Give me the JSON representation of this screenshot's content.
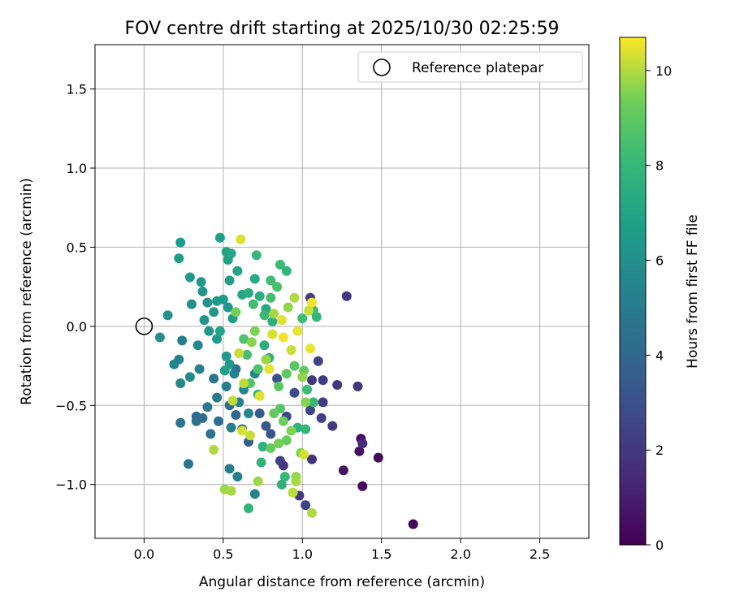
{
  "chart_data": {
    "type": "scatter",
    "title": "FOV centre drift starting at 2025/10/30 02:25:59",
    "xlabel": "Angular distance from reference (arcmin)",
    "ylabel": "Rotation from reference (arcmin)",
    "xlim": [
      -0.31,
      2.81
    ],
    "ylim": [
      -1.34,
      1.78
    ],
    "xticks": [
      0.0,
      0.5,
      1.0,
      1.5,
      2.0,
      2.5
    ],
    "xtick_labels": [
      "0.0",
      "0.5",
      "1.0",
      "1.5",
      "2.0",
      "2.5"
    ],
    "yticks": [
      -1.0,
      -0.5,
      0.0,
      0.5,
      1.0,
      1.5
    ],
    "ytick_labels": [
      "−1.0",
      "−0.5",
      "0.0",
      "0.5",
      "1.0",
      "1.5"
    ],
    "grid": true,
    "legend": {
      "position": "top-right",
      "entries": [
        "Reference platepar"
      ]
    },
    "reference_point": {
      "x": 0.0,
      "y": 0.0,
      "label": "Reference platepar"
    },
    "colorbar": {
      "label": "Hours from first FF file",
      "colormap": "viridis",
      "range": [
        0,
        10.7
      ],
      "ticks": [
        0,
        2,
        4,
        6,
        8,
        10
      ],
      "tick_labels": [
        "0",
        "2",
        "4",
        "6",
        "8",
        "10"
      ]
    },
    "series": [
      {
        "name": "FOV centre drift",
        "x_units": "arcmin",
        "y_units": "arcmin",
        "c_units": "hours",
        "points": [
          [
            1.7,
            -1.25,
            0.2
          ],
          [
            1.48,
            -0.83,
            0.3
          ],
          [
            1.38,
            -1.01,
            0.3
          ],
          [
            1.37,
            -0.71,
            0.4
          ],
          [
            1.36,
            -0.79,
            0.5
          ],
          [
            1.26,
            -0.91,
            0.6
          ],
          [
            1.38,
            -0.74,
            1.5
          ],
          [
            1.35,
            -0.38,
            1.9
          ],
          [
            1.28,
            0.19,
            1.9
          ],
          [
            1.22,
            -0.37,
            2.0
          ],
          [
            1.19,
            -0.63,
            2.1
          ],
          [
            1.13,
            -0.48,
            2.2
          ],
          [
            1.12,
            -0.58,
            2.3
          ],
          [
            1.13,
            -0.34,
            2.1
          ],
          [
            1.1,
            -0.22,
            2.4
          ],
          [
            1.06,
            -0.34,
            2.0
          ],
          [
            1.05,
            0.18,
            2.2
          ],
          [
            1.02,
            -1.13,
            2.4
          ],
          [
            0.98,
            -1.07,
            1.9
          ],
          [
            1.05,
            -0.53,
            2.5
          ],
          [
            1.06,
            -0.84,
            1.8
          ],
          [
            0.88,
            -0.88,
            2.0
          ],
          [
            0.86,
            -0.85,
            2.3
          ],
          [
            0.9,
            -0.57,
            2.6
          ],
          [
            0.95,
            -0.42,
            2.8
          ],
          [
            0.84,
            -0.33,
            3.0
          ],
          [
            0.8,
            -0.68,
            3.1
          ],
          [
            0.77,
            -0.63,
            3.3
          ],
          [
            0.73,
            -0.55,
            3.4
          ],
          [
            0.66,
            -0.73,
            3.6
          ],
          [
            0.62,
            -0.65,
            3.8
          ],
          [
            0.58,
            -0.56,
            4.0
          ],
          [
            0.54,
            -0.5,
            4.2
          ],
          [
            0.58,
            -0.27,
            4.4
          ],
          [
            0.47,
            -0.6,
            4.3
          ],
          [
            0.33,
            -0.57,
            4.1
          ],
          [
            0.33,
            -0.6,
            4.5
          ],
          [
            0.28,
            -0.87,
            4.6
          ],
          [
            0.23,
            -0.61,
            4.7
          ],
          [
            0.37,
            -0.58,
            4.2
          ],
          [
            0.42,
            -0.68,
            4.6
          ],
          [
            0.4,
            -0.51,
            4.8
          ],
          [
            0.46,
            -0.45,
            4.9
          ],
          [
            0.44,
            -0.33,
            4.7
          ],
          [
            0.52,
            -0.38,
            5.0
          ],
          [
            0.57,
            -0.3,
            5.1
          ],
          [
            0.54,
            -0.9,
            5.2
          ],
          [
            0.59,
            -0.95,
            5.3
          ],
          [
            0.7,
            -1.06,
            5.4
          ],
          [
            0.55,
            -0.64,
            5.3
          ],
          [
            0.6,
            -0.48,
            5.2
          ],
          [
            0.63,
            -0.4,
            5.4
          ],
          [
            0.66,
            -0.55,
            5.5
          ],
          [
            0.7,
            -0.3,
            5.6
          ],
          [
            0.35,
            -0.27,
            5.3
          ],
          [
            0.24,
            -0.09,
            5.2
          ],
          [
            0.22,
            -0.21,
            5.4
          ],
          [
            0.19,
            -0.24,
            5.5
          ],
          [
            0.23,
            -0.36,
            5.6
          ],
          [
            0.29,
            -0.32,
            5.8
          ],
          [
            0.34,
            -0.12,
            5.7
          ],
          [
            0.1,
            -0.07,
            5.9
          ],
          [
            0.15,
            0.07,
            6.1
          ],
          [
            0.3,
            0.14,
            6.0
          ],
          [
            0.38,
            0.04,
            6.2
          ],
          [
            0.41,
            -0.03,
            6.3
          ],
          [
            0.44,
            0.09,
            6.4
          ],
          [
            0.4,
            0.15,
            6.2
          ],
          [
            0.46,
            0.16,
            6.5
          ],
          [
            0.5,
            0.17,
            6.6
          ],
          [
            0.53,
            0.12,
            6.3
          ],
          [
            0.56,
            0.05,
            6.7
          ],
          [
            0.52,
            -0.19,
            6.4
          ],
          [
            0.54,
            -0.24,
            6.5
          ],
          [
            0.51,
            -0.28,
            6.8
          ],
          [
            0.46,
            -0.08,
            6.6
          ],
          [
            0.48,
            -0.03,
            6.9
          ],
          [
            0.37,
            0.22,
            6.2
          ],
          [
            0.36,
            0.28,
            6.4
          ],
          [
            0.29,
            0.31,
            6.5
          ],
          [
            0.22,
            0.43,
            6.7
          ],
          [
            0.23,
            0.53,
            6.6
          ],
          [
            0.48,
            0.56,
            6.8
          ],
          [
            0.52,
            0.47,
            7.0
          ],
          [
            0.53,
            0.42,
            6.9
          ],
          [
            0.55,
            0.46,
            7.1
          ],
          [
            0.59,
            0.35,
            7.0
          ],
          [
            0.54,
            0.29,
            6.8
          ],
          [
            0.62,
            0.2,
            7.2
          ],
          [
            0.66,
            0.21,
            7.4
          ],
          [
            0.7,
            0.3,
            7.3
          ],
          [
            0.73,
            0.19,
            7.5
          ],
          [
            0.77,
            0.11,
            7.2
          ],
          [
            0.81,
            0.03,
            7.6
          ],
          [
            0.76,
            -0.12,
            7.4
          ],
          [
            0.79,
            -0.2,
            7.7
          ],
          [
            0.72,
            -0.43,
            7.5
          ],
          [
            0.75,
            -0.76,
            7.6
          ],
          [
            0.74,
            -0.86,
            7.8
          ],
          [
            0.66,
            -1.15,
            7.9
          ],
          [
            0.89,
            -0.95,
            8.0
          ],
          [
            0.87,
            -1.0,
            7.7
          ],
          [
            0.97,
            -0.64,
            7.8
          ],
          [
            1.02,
            -0.65,
            8.0
          ],
          [
            1.07,
            -0.48,
            8.1
          ],
          [
            1.03,
            -0.4,
            8.2
          ],
          [
            1.09,
            0.06,
            7.9
          ],
          [
            1.07,
            0.1,
            8.1
          ],
          [
            1.0,
            0.05,
            8.3
          ],
          [
            0.9,
            0.35,
            7.8
          ],
          [
            0.86,
            0.39,
            8.2
          ],
          [
            0.71,
            0.45,
            8.0
          ],
          [
            0.69,
            0.14,
            8.3
          ],
          [
            0.76,
            0.07,
            8.2
          ],
          [
            0.8,
            0.18,
            8.4
          ],
          [
            0.84,
            0.25,
            8.5
          ],
          [
            0.8,
            0.29,
            8.3
          ],
          [
            0.63,
            -0.08,
            8.6
          ],
          [
            0.65,
            -0.18,
            8.4
          ],
          [
            0.67,
            -0.36,
            8.7
          ],
          [
            0.72,
            -0.27,
            8.6
          ],
          [
            0.86,
            -0.52,
            8.8
          ],
          [
            0.85,
            -0.38,
            8.9
          ],
          [
            0.9,
            -0.3,
            9.0
          ],
          [
            0.95,
            -0.25,
            8.9
          ],
          [
            1.01,
            -0.28,
            9.1
          ],
          [
            0.8,
            -0.77,
            9.2
          ],
          [
            0.82,
            -0.55,
            9.1
          ],
          [
            0.88,
            -0.6,
            9.3
          ],
          [
            0.85,
            -0.74,
            9.4
          ],
          [
            0.9,
            -0.72,
            9.2
          ],
          [
            0.93,
            -0.66,
            9.5
          ],
          [
            0.99,
            -0.8,
            9.6
          ],
          [
            1.02,
            -0.48,
            9.6
          ],
          [
            0.96,
            -0.95,
            9.7
          ],
          [
            0.72,
            -0.98,
            9.8
          ],
          [
            0.51,
            -1.03,
            9.8
          ],
          [
            0.55,
            -1.04,
            9.9
          ],
          [
            0.44,
            -0.78,
            10.0
          ],
          [
            0.56,
            -0.47,
            10.1
          ],
          [
            0.6,
            -0.17,
            10.2
          ],
          [
            0.63,
            -0.36,
            10.1
          ],
          [
            0.62,
            -0.66,
            10.3
          ],
          [
            0.67,
            -0.69,
            10.2
          ],
          [
            0.73,
            -0.44,
            10.4
          ],
          [
            0.79,
            -0.27,
            10.5
          ],
          [
            0.81,
            -0.05,
            10.3
          ],
          [
            0.87,
            0.04,
            10.4
          ],
          [
            0.88,
            -0.07,
            10.6
          ],
          [
            0.93,
            -0.15,
            10.2
          ],
          [
            0.97,
            -0.03,
            10.5
          ],
          [
            1.01,
            -0.81,
            10.3
          ],
          [
            1.06,
            -1.18,
            10.0
          ],
          [
            0.94,
            -1.05,
            10.1
          ],
          [
            0.96,
            -0.98,
            9.9
          ],
          [
            1.0,
            -0.32,
            9.7
          ],
          [
            1.04,
            0.1,
            10.2
          ],
          [
            1.06,
            0.15,
            10.6
          ],
          [
            1.05,
            -0.14,
            10.5
          ],
          [
            0.61,
            0.55,
            10.4
          ],
          [
            0.58,
            0.09,
            9.4
          ],
          [
            0.7,
            -0.03,
            9.5
          ],
          [
            0.82,
            0.08,
            9.9
          ],
          [
            0.91,
            0.12,
            9.7
          ],
          [
            0.95,
            0.18,
            10.0
          ],
          [
            0.77,
            -0.21,
            9.8
          ],
          [
            0.68,
            -0.1,
            9.6
          ]
        ]
      }
    ]
  }
}
